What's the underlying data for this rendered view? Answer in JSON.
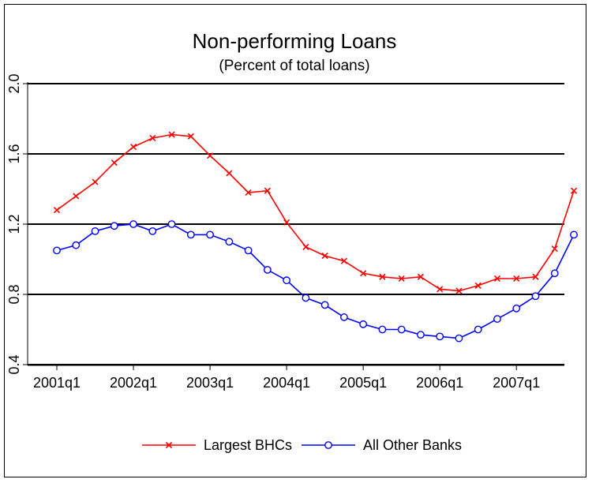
{
  "chart_data": {
    "type": "line",
    "title": "Non-performing Loans",
    "subtitle": "(Percent of total loans)",
    "xlabel": "",
    "ylabel": "",
    "ylim": [
      0.4,
      2.0
    ],
    "yticks": [
      "0.4",
      "0.8",
      "1.2",
      "1.6",
      "2.0"
    ],
    "xticks": [
      "2001q1",
      "2002q1",
      "2003q1",
      "2004q1",
      "2005q1",
      "2006q1",
      "2007q1"
    ],
    "grid": "horizontal",
    "legend_position": "bottom",
    "x": [
      "2001q1",
      "2001q2",
      "2001q3",
      "2001q4",
      "2002q1",
      "2002q2",
      "2002q3",
      "2002q4",
      "2003q1",
      "2003q2",
      "2003q3",
      "2003q4",
      "2004q1",
      "2004q2",
      "2004q3",
      "2004q4",
      "2005q1",
      "2005q2",
      "2005q3",
      "2005q4",
      "2006q1",
      "2006q2",
      "2006q3",
      "2006q4",
      "2007q1",
      "2007q2",
      "2007q3",
      "2007q4"
    ],
    "series": [
      {
        "name": "Largest BHCs",
        "color": "#ff0000",
        "marker": "x",
        "values": [
          1.28,
          1.36,
          1.44,
          1.55,
          1.64,
          1.69,
          1.71,
          1.7,
          1.59,
          1.49,
          1.38,
          1.39,
          1.21,
          1.07,
          1.02,
          0.99,
          0.92,
          0.9,
          0.89,
          0.9,
          0.83,
          0.82,
          0.85,
          0.89,
          0.89,
          0.9,
          1.06,
          1.39
        ]
      },
      {
        "name": "All Other Banks",
        "color": "#0000ff",
        "marker": "circle",
        "values": [
          1.05,
          1.08,
          1.16,
          1.19,
          1.2,
          1.16,
          1.2,
          1.14,
          1.14,
          1.1,
          1.05,
          0.94,
          0.88,
          0.78,
          0.74,
          0.67,
          0.63,
          0.6,
          0.6,
          0.57,
          0.56,
          0.55,
          0.6,
          0.66,
          0.72,
          0.79,
          0.92,
          1.14
        ]
      }
    ]
  }
}
